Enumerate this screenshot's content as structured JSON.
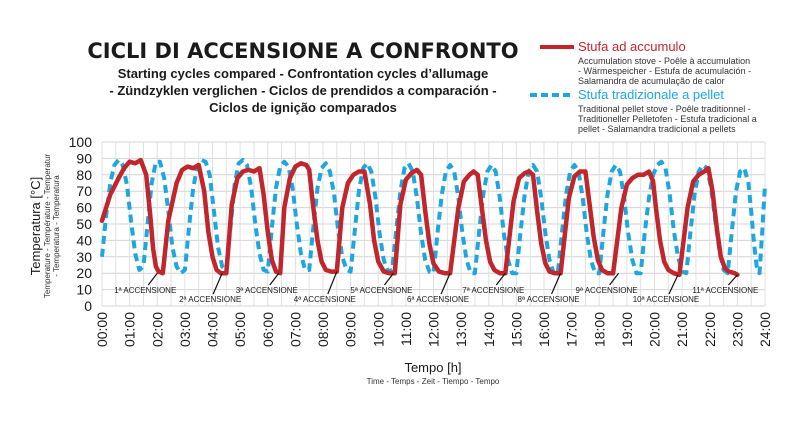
{
  "chart_data": {
    "type": "line",
    "title": "CICLI DI ACCENSIONE A CONFRONTO",
    "subtitle_lines": [
      "Starting cycles compared - Confrontation cycles d’allumage",
      "- Zündzyklen verglichen - Ciclos de prendidos a comparación -",
      "Ciclos de ignição comparados"
    ],
    "xlabel": "Tempo [h]",
    "xlabel_sub": "Time - Temps - Zeit - Tiempo - Tempo",
    "ylabel": "Temperatura [°C]",
    "ylabel_sub_lines": [
      "Temperature - Température - Temperatur",
      "- Temperatura - Temperatura"
    ],
    "x_ticks": [
      "00:00",
      "01:00",
      "02:00",
      "03:00",
      "04:00",
      "05:00",
      "06:00",
      "07:00",
      "08:00",
      "09:00",
      "10:00",
      "11:00",
      "12:00",
      "13:00",
      "14:00",
      "15:00",
      "16:00",
      "17:00",
      "18:00",
      "19:00",
      "20:00",
      "21:00",
      "22:00",
      "23:00",
      "24:00"
    ],
    "xlim": [
      0,
      24
    ],
    "ylim": [
      0,
      100
    ],
    "y_ticks": [
      0,
      10,
      20,
      30,
      40,
      50,
      60,
      70,
      80,
      90,
      100
    ],
    "grid": true,
    "legend_position": "top-right",
    "series": [
      {
        "name": "Stufa ad accumulo",
        "description_lines": [
          "Accumulation stove - Poêle à accumulation",
          "- Wärmespeicher - Estufa de acumulación -",
          "Salamandra de acumulação de calor"
        ],
        "color": "#c0262c",
        "style": "solid",
        "points": [
          [
            0.0,
            52
          ],
          [
            0.3,
            68
          ],
          [
            0.6,
            78
          ],
          [
            0.8,
            84
          ],
          [
            1.0,
            88
          ],
          [
            1.2,
            87
          ],
          [
            1.4,
            89
          ],
          [
            1.6,
            80
          ],
          [
            1.75,
            55
          ],
          [
            1.85,
            35
          ],
          [
            1.95,
            24
          ],
          [
            2.05,
            21
          ],
          [
            2.2,
            20
          ],
          [
            2.4,
            52
          ],
          [
            2.7,
            75
          ],
          [
            2.9,
            83
          ],
          [
            3.1,
            85
          ],
          [
            3.3,
            84
          ],
          [
            3.5,
            86
          ],
          [
            3.7,
            70
          ],
          [
            3.85,
            45
          ],
          [
            4.0,
            30
          ],
          [
            4.15,
            22
          ],
          [
            4.3,
            20
          ],
          [
            4.5,
            20
          ],
          [
            4.7,
            62
          ],
          [
            4.9,
            78
          ],
          [
            5.1,
            82
          ],
          [
            5.3,
            83
          ],
          [
            5.5,
            82
          ],
          [
            5.7,
            84
          ],
          [
            5.85,
            68
          ],
          [
            6.0,
            45
          ],
          [
            6.15,
            28
          ],
          [
            6.3,
            21
          ],
          [
            6.45,
            20
          ],
          [
            6.6,
            60
          ],
          [
            6.8,
            78
          ],
          [
            7.0,
            85
          ],
          [
            7.2,
            87
          ],
          [
            7.4,
            86
          ],
          [
            7.5,
            83
          ],
          [
            7.65,
            60
          ],
          [
            7.8,
            40
          ],
          [
            7.95,
            27
          ],
          [
            8.1,
            22
          ],
          [
            8.3,
            21
          ],
          [
            8.5,
            21
          ],
          [
            8.7,
            60
          ],
          [
            8.9,
            75
          ],
          [
            9.1,
            80
          ],
          [
            9.3,
            82
          ],
          [
            9.5,
            82
          ],
          [
            9.7,
            62
          ],
          [
            9.85,
            40
          ],
          [
            10.0,
            27
          ],
          [
            10.2,
            21
          ],
          [
            10.4,
            20
          ],
          [
            10.6,
            20
          ],
          [
            10.8,
            62
          ],
          [
            11.0,
            77
          ],
          [
            11.2,
            81
          ],
          [
            11.4,
            83
          ],
          [
            11.55,
            80
          ],
          [
            11.7,
            58
          ],
          [
            11.85,
            38
          ],
          [
            12.0,
            26
          ],
          [
            12.2,
            21
          ],
          [
            12.4,
            20
          ],
          [
            12.6,
            20
          ],
          [
            12.9,
            60
          ],
          [
            13.1,
            76
          ],
          [
            13.3,
            80
          ],
          [
            13.45,
            82
          ],
          [
            13.6,
            80
          ],
          [
            13.75,
            60
          ],
          [
            13.9,
            40
          ],
          [
            14.05,
            27
          ],
          [
            14.2,
            22
          ],
          [
            14.4,
            20
          ],
          [
            14.6,
            20
          ],
          [
            14.9,
            64
          ],
          [
            15.1,
            78
          ],
          [
            15.3,
            81
          ],
          [
            15.45,
            82
          ],
          [
            15.6,
            80
          ],
          [
            15.75,
            58
          ],
          [
            15.9,
            38
          ],
          [
            16.05,
            26
          ],
          [
            16.2,
            21
          ],
          [
            16.4,
            20
          ],
          [
            16.6,
            20
          ],
          [
            16.9,
            66
          ],
          [
            17.1,
            79
          ],
          [
            17.3,
            82
          ],
          [
            17.5,
            82
          ],
          [
            17.65,
            62
          ],
          [
            17.8,
            42
          ],
          [
            17.95,
            28
          ],
          [
            18.1,
            22
          ],
          [
            18.3,
            20
          ],
          [
            18.5,
            20
          ],
          [
            18.8,
            60
          ],
          [
            19.0,
            74
          ],
          [
            19.2,
            78
          ],
          [
            19.4,
            80
          ],
          [
            19.6,
            80
          ],
          [
            19.8,
            82
          ],
          [
            19.95,
            76
          ],
          [
            20.05,
            60
          ],
          [
            20.2,
            40
          ],
          [
            20.35,
            27
          ],
          [
            20.5,
            22
          ],
          [
            20.7,
            20
          ],
          [
            20.9,
            19
          ],
          [
            21.2,
            60
          ],
          [
            21.4,
            76
          ],
          [
            21.6,
            80
          ],
          [
            21.8,
            82
          ],
          [
            21.95,
            84
          ],
          [
            22.1,
            70
          ],
          [
            22.25,
            48
          ],
          [
            22.4,
            30
          ],
          [
            22.55,
            23
          ],
          [
            22.7,
            21
          ],
          [
            22.9,
            20
          ],
          [
            23.0,
            19
          ]
        ]
      },
      {
        "name": "Stufa tradizionale a pellet",
        "description_lines": [
          "Traditional pellet stove - Poêle traditionnel -",
          "Traditioneller Pelletofen - Estufa tradicional a",
          "pellet - Salamandra tradicional a pellets"
        ],
        "color": "#1ea6e0",
        "style": "dashed",
        "points": [
          [
            0.0,
            30
          ],
          [
            0.15,
            55
          ],
          [
            0.3,
            75
          ],
          [
            0.45,
            86
          ],
          [
            0.6,
            89
          ],
          [
            0.75,
            86
          ],
          [
            0.9,
            74
          ],
          [
            1.05,
            52
          ],
          [
            1.2,
            32
          ],
          [
            1.35,
            22
          ],
          [
            1.5,
            24
          ],
          [
            1.65,
            50
          ],
          [
            1.8,
            75
          ],
          [
            1.95,
            88
          ],
          [
            2.1,
            88
          ],
          [
            2.25,
            78
          ],
          [
            2.4,
            58
          ],
          [
            2.55,
            36
          ],
          [
            2.7,
            24
          ],
          [
            2.85,
            20
          ],
          [
            3.0,
            22
          ],
          [
            3.15,
            48
          ],
          [
            3.3,
            72
          ],
          [
            3.45,
            85
          ],
          [
            3.6,
            89
          ],
          [
            3.75,
            88
          ],
          [
            3.9,
            80
          ],
          [
            4.05,
            58
          ],
          [
            4.2,
            36
          ],
          [
            4.35,
            24
          ],
          [
            4.5,
            22
          ],
          [
            4.65,
            48
          ],
          [
            4.8,
            74
          ],
          [
            4.95,
            87
          ],
          [
            5.1,
            89
          ],
          [
            5.25,
            86
          ],
          [
            5.4,
            72
          ],
          [
            5.55,
            50
          ],
          [
            5.7,
            32
          ],
          [
            5.85,
            22
          ],
          [
            6.0,
            21
          ],
          [
            6.15,
            48
          ],
          [
            6.3,
            72
          ],
          [
            6.45,
            85
          ],
          [
            6.6,
            88
          ],
          [
            6.75,
            85
          ],
          [
            6.9,
            72
          ],
          [
            7.05,
            50
          ],
          [
            7.2,
            32
          ],
          [
            7.35,
            22
          ],
          [
            7.5,
            22
          ],
          [
            7.65,
            48
          ],
          [
            7.8,
            72
          ],
          [
            7.95,
            84
          ],
          [
            8.1,
            87
          ],
          [
            8.25,
            82
          ],
          [
            8.4,
            68
          ],
          [
            8.55,
            46
          ],
          [
            8.7,
            30
          ],
          [
            8.85,
            22
          ],
          [
            9.0,
            21
          ],
          [
            9.15,
            46
          ],
          [
            9.3,
            70
          ],
          [
            9.45,
            84
          ],
          [
            9.6,
            87
          ],
          [
            9.75,
            82
          ],
          [
            9.9,
            66
          ],
          [
            10.05,
            44
          ],
          [
            10.2,
            28
          ],
          [
            10.35,
            21
          ],
          [
            10.5,
            22
          ],
          [
            10.65,
            46
          ],
          [
            10.8,
            70
          ],
          [
            10.95,
            84
          ],
          [
            11.1,
            87
          ],
          [
            11.25,
            82
          ],
          [
            11.4,
            66
          ],
          [
            11.55,
            44
          ],
          [
            11.7,
            28
          ],
          [
            11.85,
            21
          ],
          [
            12.0,
            20
          ],
          [
            12.15,
            45
          ],
          [
            12.3,
            68
          ],
          [
            12.45,
            82
          ],
          [
            12.6,
            86
          ],
          [
            12.75,
            82
          ],
          [
            12.9,
            66
          ],
          [
            13.05,
            44
          ],
          [
            13.2,
            28
          ],
          [
            13.35,
            20
          ],
          [
            13.5,
            20
          ],
          [
            13.65,
            45
          ],
          [
            13.8,
            68
          ],
          [
            13.95,
            82
          ],
          [
            14.1,
            86
          ],
          [
            14.25,
            82
          ],
          [
            14.4,
            66
          ],
          [
            14.55,
            44
          ],
          [
            14.7,
            28
          ],
          [
            14.85,
            20
          ],
          [
            15.0,
            20
          ],
          [
            15.15,
            45
          ],
          [
            15.3,
            68
          ],
          [
            15.45,
            82
          ],
          [
            15.6,
            86
          ],
          [
            15.75,
            82
          ],
          [
            15.9,
            66
          ],
          [
            16.05,
            44
          ],
          [
            16.2,
            28
          ],
          [
            16.35,
            20
          ],
          [
            16.5,
            20
          ],
          [
            16.65,
            45
          ],
          [
            16.8,
            68
          ],
          [
            16.95,
            82
          ],
          [
            17.1,
            86
          ],
          [
            17.25,
            82
          ],
          [
            17.4,
            66
          ],
          [
            17.55,
            44
          ],
          [
            17.7,
            28
          ],
          [
            17.85,
            20
          ],
          [
            18.0,
            20
          ],
          [
            18.15,
            45
          ],
          [
            18.3,
            68
          ],
          [
            18.45,
            82
          ],
          [
            18.6,
            86
          ],
          [
            18.75,
            82
          ],
          [
            18.9,
            66
          ],
          [
            19.05,
            44
          ],
          [
            19.2,
            28
          ],
          [
            19.35,
            20
          ],
          [
            19.5,
            20
          ],
          [
            19.65,
            45
          ],
          [
            19.8,
            66
          ],
          [
            19.95,
            80
          ],
          [
            20.1,
            86
          ],
          [
            20.25,
            88
          ],
          [
            20.4,
            84
          ],
          [
            20.55,
            68
          ],
          [
            20.7,
            46
          ],
          [
            20.85,
            30
          ],
          [
            21.0,
            21
          ],
          [
            21.15,
            20
          ],
          [
            21.3,
            45
          ],
          [
            21.45,
            68
          ],
          [
            21.6,
            82
          ],
          [
            21.75,
            86
          ],
          [
            21.9,
            84
          ],
          [
            22.05,
            72
          ],
          [
            22.2,
            52
          ],
          [
            22.35,
            34
          ],
          [
            22.5,
            22
          ],
          [
            22.65,
            20
          ],
          [
            22.8,
            46
          ],
          [
            22.95,
            70
          ],
          [
            23.1,
            82
          ],
          [
            23.25,
            84
          ],
          [
            23.4,
            75
          ],
          [
            23.5,
            58
          ],
          [
            23.6,
            38
          ],
          [
            23.7,
            24
          ],
          [
            23.8,
            20
          ],
          [
            23.9,
            45
          ],
          [
            24.0,
            74
          ]
        ]
      }
    ],
    "annotations": [
      {
        "label": "1ª ACCENSIONE",
        "x": 2.0,
        "y": 20
      },
      {
        "label": "2ª ACCENSIONE",
        "x": 4.35,
        "y": 20
      },
      {
        "label": "3ª ACCENSIONE",
        "x": 6.4,
        "y": 20
      },
      {
        "label": "4ª ACCENSIONE",
        "x": 8.5,
        "y": 21
      },
      {
        "label": "5ª ACCENSIONE",
        "x": 10.55,
        "y": 20
      },
      {
        "label": "6ª ACCENSIONE",
        "x": 12.6,
        "y": 20
      },
      {
        "label": "7ª ACCENSIONE",
        "x": 14.6,
        "y": 20
      },
      {
        "label": "8ª ACCENSIONE",
        "x": 16.6,
        "y": 20
      },
      {
        "label": "9ª ACCENSIONE",
        "x": 18.7,
        "y": 20
      },
      {
        "label": "10ª ACCENSIONE",
        "x": 20.85,
        "y": 19
      },
      {
        "label": "11ª ACCENSIONE",
        "x": 23.0,
        "y": 19
      }
    ]
  }
}
